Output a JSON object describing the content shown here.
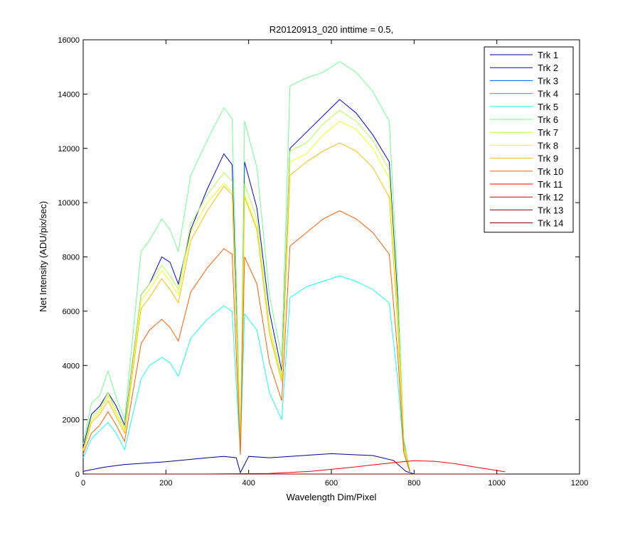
{
  "chart_data": {
    "type": "line",
    "title": "R20120913_020 inttime = 0.5,",
    "xlabel": "Wavelength Dim/Pixel",
    "ylabel": "Net Intensity (ADU/pix/sec)",
    "xlim": [
      0,
      1200
    ],
    "ylim": [
      0,
      16000
    ],
    "xticks": [
      0,
      200,
      400,
      600,
      800,
      1000,
      1200
    ],
    "yticks": [
      0,
      2000,
      4000,
      6000,
      8000,
      10000,
      12000,
      14000,
      16000
    ],
    "grid": false,
    "legend_position": "top-right",
    "series": [
      {
        "name": "Trk 1",
        "color": "#00008f",
        "x": [
          0,
          50,
          100,
          200,
          300,
          340,
          370,
          380,
          400,
          450,
          500,
          550,
          600,
          700,
          750,
          780,
          800
        ],
        "y": [
          100,
          250,
          350,
          450,
          600,
          650,
          600,
          50,
          650,
          600,
          650,
          700,
          750,
          680,
          500,
          100,
          0
        ]
      },
      {
        "name": "Trk 2",
        "color": "#0000ef",
        "x": [
          0,
          20,
          40,
          60,
          80,
          100,
          140,
          160,
          190,
          210,
          230,
          260,
          300,
          340,
          360,
          375,
          380,
          390,
          420,
          450,
          480,
          500,
          540,
          580,
          620,
          660,
          700,
          740,
          760,
          775,
          790
        ],
        "y": [
          1000,
          2200,
          2500,
          3000,
          2500,
          1800,
          6600,
          7000,
          8000,
          7800,
          7000,
          9000,
          10500,
          11800,
          11400,
          3800,
          800,
          11500,
          9800,
          6000,
          3800,
          12000,
          12600,
          13200,
          13800,
          13300,
          12500,
          11500,
          6500,
          1200,
          100
        ]
      },
      {
        "name": "Trk 3",
        "color": "#0050ff",
        "x": [
          0,
          200,
          400,
          600,
          800,
          900,
          1020
        ],
        "y": [
          0,
          0,
          0,
          0,
          0,
          0,
          0
        ]
      },
      {
        "name": "Trk 4",
        "color": "#00afff",
        "x": [
          0,
          200,
          400,
          600,
          800,
          900,
          1020
        ],
        "y": [
          0,
          0,
          0,
          0,
          0,
          0,
          0
        ]
      },
      {
        "name": "Trk 5",
        "color": "#10ffef",
        "x": [
          0,
          20,
          40,
          60,
          80,
          100,
          140,
          160,
          190,
          210,
          230,
          260,
          300,
          340,
          360,
          375,
          380,
          390,
          420,
          450,
          480,
          500,
          540,
          580,
          620,
          660,
          700,
          740,
          760,
          775,
          790
        ],
        "y": [
          600,
          1300,
          1600,
          1900,
          1500,
          900,
          3500,
          4000,
          4300,
          4100,
          3600,
          5000,
          5700,
          6200,
          6000,
          2000,
          800,
          5900,
          5300,
          3000,
          2000,
          6500,
          6900,
          7100,
          7300,
          7100,
          6800,
          6300,
          3500,
          800,
          50
        ]
      },
      {
        "name": "Trk 6",
        "color": "#6fff8f",
        "x": [
          0,
          20,
          40,
          60,
          80,
          100,
          140,
          160,
          190,
          210,
          230,
          260,
          300,
          340,
          360,
          375,
          380,
          390,
          420,
          450,
          480,
          500,
          540,
          580,
          620,
          660,
          700,
          740,
          760,
          775,
          790
        ],
        "y": [
          1100,
          2600,
          2900,
          3800,
          2800,
          2000,
          8200,
          8600,
          9400,
          9000,
          8200,
          11000,
          12300,
          13500,
          13100,
          4300,
          900,
          13000,
          11300,
          6600,
          4300,
          14300,
          14600,
          14800,
          15200,
          14800,
          14100,
          13000,
          7100,
          1300,
          100
        ]
      },
      {
        "name": "Trk 7",
        "color": "#afff4f",
        "x": [
          0,
          20,
          40,
          60,
          80,
          100,
          140,
          160,
          190,
          210,
          230,
          260,
          300,
          340,
          360,
          375,
          380,
          390,
          420,
          450,
          480,
          500,
          540,
          580,
          620,
          660,
          700,
          740,
          760,
          775,
          790
        ],
        "y": [
          900,
          2100,
          2400,
          3000,
          2300,
          1700,
          6600,
          7000,
          7700,
          7300,
          6800,
          9200,
          10300,
          11100,
          10800,
          3600,
          800,
          10700,
          9400,
          5500,
          3600,
          11900,
          12200,
          12900,
          13400,
          13000,
          12300,
          11200,
          6200,
          1100,
          100
        ]
      },
      {
        "name": "Trk 8",
        "color": "#efff10",
        "x": [
          0,
          20,
          40,
          60,
          80,
          100,
          140,
          160,
          190,
          210,
          230,
          260,
          300,
          340,
          360,
          375,
          380,
          390,
          420,
          450,
          480,
          500,
          540,
          580,
          620,
          660,
          700,
          740,
          760,
          775,
          790
        ],
        "y": [
          900,
          2000,
          2300,
          2900,
          2200,
          1600,
          6400,
          6800,
          7500,
          7100,
          6600,
          8900,
          10000,
          10700,
          10400,
          3500,
          800,
          10300,
          9100,
          5300,
          3500,
          11500,
          11800,
          12500,
          13000,
          12700,
          12000,
          10900,
          6000,
          1100,
          100
        ]
      },
      {
        "name": "Trk 9",
        "color": "#ffbf00",
        "x": [
          0,
          20,
          40,
          60,
          80,
          100,
          140,
          160,
          190,
          210,
          230,
          260,
          300,
          340,
          360,
          375,
          380,
          390,
          420,
          450,
          480,
          500,
          540,
          580,
          620,
          660,
          700,
          740,
          760,
          775,
          790
        ],
        "y": [
          850,
          1900,
          2200,
          2700,
          2100,
          1500,
          6100,
          6500,
          7200,
          6800,
          6300,
          8600,
          9700,
          10600,
          10300,
          3400,
          800,
          10200,
          9000,
          5200,
          3400,
          11000,
          11500,
          11900,
          12200,
          11900,
          11300,
          10200,
          5600,
          1000,
          100
        ]
      },
      {
        "name": "Trk 10",
        "color": "#ff6000",
        "x": [
          0,
          20,
          40,
          60,
          80,
          100,
          140,
          160,
          190,
          210,
          230,
          260,
          300,
          340,
          360,
          375,
          380,
          390,
          420,
          450,
          480,
          500,
          540,
          580,
          620,
          660,
          700,
          740,
          760,
          775,
          790
        ],
        "y": [
          750,
          1500,
          1800,
          2300,
          1800,
          1200,
          4800,
          5300,
          5700,
          5400,
          4900,
          6700,
          7600,
          8300,
          8100,
          2600,
          700,
          8000,
          7000,
          4100,
          2700,
          8400,
          8900,
          9400,
          9700,
          9400,
          8900,
          8100,
          4500,
          800,
          80
        ]
      },
      {
        "name": "Trk 11",
        "color": "#ff0000",
        "x": [
          0,
          300,
          450,
          550,
          650,
          750,
          800,
          850,
          900,
          950,
          1020
        ],
        "y": [
          0,
          0,
          20,
          100,
          250,
          420,
          490,
          470,
          380,
          250,
          80
        ]
      },
      {
        "name": "Trk 12",
        "color": "#cf0000",
        "x": [
          0,
          200,
          400,
          600,
          800,
          900,
          1020
        ],
        "y": [
          0,
          0,
          0,
          0,
          0,
          0,
          0
        ]
      },
      {
        "name": "Trk 13",
        "color": "#8f0000",
        "x": [
          0,
          200,
          400,
          600,
          800,
          900,
          1020
        ],
        "y": [
          0,
          0,
          0,
          0,
          0,
          0,
          0
        ]
      },
      {
        "name": "Trk 14",
        "color": "#800000",
        "x": [
          0,
          200,
          400,
          600,
          800,
          900,
          1020
        ],
        "y": [
          0,
          0,
          0,
          0,
          0,
          0,
          0
        ]
      }
    ]
  }
}
